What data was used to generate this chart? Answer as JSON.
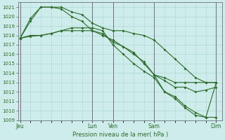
{
  "bg_color": "#ceecea",
  "grid_color": "#aed8d4",
  "line_color": "#2d6b2d",
  "vline_color": "#707080",
  "ylim": [
    1009,
    1021.5
  ],
  "yticks": [
    1009,
    1010,
    1011,
    1012,
    1013,
    1014,
    1015,
    1016,
    1017,
    1018,
    1019,
    1020,
    1021
  ],
  "xlabel": "Pression niveau de la mer( hPa )",
  "xlabel_color": "#2d6b2d",
  "day_labels": [
    "Jeu",
    "",
    "Lun",
    "Ven",
    "",
    "Sam",
    "",
    "Dim"
  ],
  "day_positions": [
    0,
    1.5,
    3.5,
    4.5,
    5.5,
    6.5,
    8.0,
    9.5
  ],
  "vline_positions": [
    0,
    3.5,
    4.5,
    6.5,
    9.5
  ],
  "xlim": [
    -0.1,
    9.8
  ],
  "line1_x": [
    0.0,
    0.5,
    1.0,
    1.5,
    2.0,
    2.5,
    3.0,
    3.5,
    4.0,
    4.5,
    5.0,
    5.5,
    6.0,
    6.5,
    7.0,
    7.5,
    8.0,
    8.5,
    9.0,
    9.5
  ],
  "line1_y": [
    1017.7,
    1019.8,
    1021.0,
    1021.0,
    1021.0,
    1020.5,
    1020.2,
    1019.3,
    1018.8,
    1018.5,
    1018.5,
    1018.2,
    1018.0,
    1017.5,
    1016.5,
    1015.5,
    1014.5,
    1013.5,
    1013.0,
    1013.0
  ],
  "line2_x": [
    0.0,
    0.5,
    1.0,
    1.5,
    2.0,
    2.5,
    3.0,
    3.5,
    4.0,
    4.5,
    5.0,
    5.5,
    6.0,
    6.5,
    7.0,
    7.5,
    8.0,
    8.5,
    9.0,
    9.5
  ],
  "line2_y": [
    1017.7,
    1019.5,
    1021.0,
    1021.0,
    1020.8,
    1020.0,
    1019.5,
    1018.5,
    1018.0,
    1017.5,
    1016.8,
    1016.0,
    1015.2,
    1013.8,
    1013.2,
    1012.5,
    1012.5,
    1012.0,
    1012.2,
    1012.5
  ],
  "line3_x": [
    0.0,
    0.5,
    1.0,
    1.5,
    2.0,
    2.5,
    3.0,
    3.5,
    4.0,
    4.5,
    5.0,
    5.5,
    6.0,
    6.5,
    7.0,
    7.5,
    8.0,
    8.5,
    9.0,
    9.5
  ],
  "line3_y": [
    1017.7,
    1018.0,
    1018.0,
    1018.2,
    1018.5,
    1018.5,
    1018.5,
    1018.5,
    1018.2,
    1017.3,
    1016.8,
    1016.2,
    1015.0,
    1013.8,
    1013.5,
    1013.0,
    1013.0,
    1013.0,
    1013.0,
    1013.0
  ],
  "line4_x": [
    0.0,
    0.5,
    1.0,
    1.5,
    2.0,
    2.5,
    3.0,
    3.5,
    4.0,
    4.5,
    5.0,
    5.5,
    6.0,
    6.5,
    7.0,
    7.5,
    8.0,
    8.5,
    9.0,
    9.5
  ],
  "line4_y": [
    1017.7,
    1017.9,
    1018.0,
    1018.2,
    1018.5,
    1018.8,
    1018.8,
    1018.8,
    1018.5,
    1017.0,
    1016.0,
    1015.0,
    1014.2,
    1013.5,
    1012.0,
    1011.5,
    1010.5,
    1009.8,
    1009.3,
    1009.3
  ],
  "line5_x": [
    6.5,
    7.0,
    7.5,
    8.0,
    8.5,
    9.0,
    9.5
  ],
  "line5_y": [
    1013.8,
    1012.0,
    1011.3,
    1010.3,
    1009.5,
    1009.3,
    1013.0
  ]
}
